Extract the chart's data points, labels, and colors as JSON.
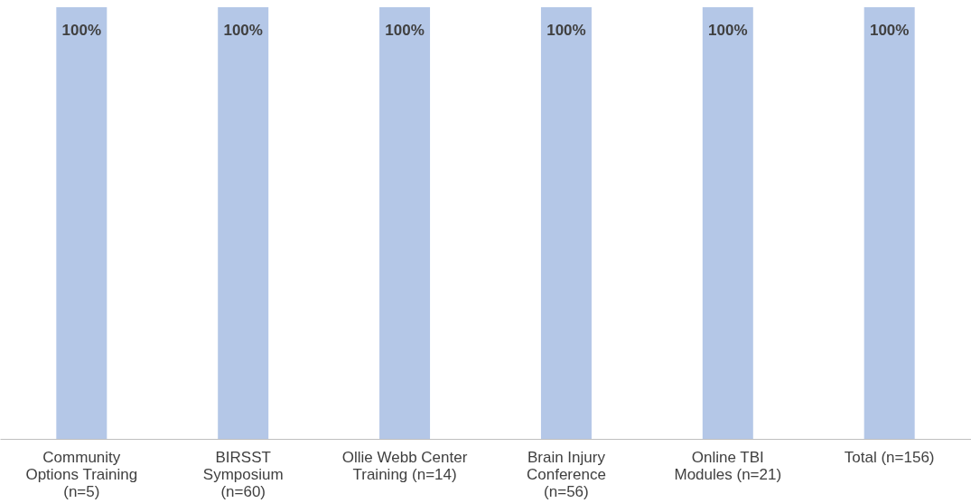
{
  "chart_data": {
    "type": "bar",
    "categories": [
      "Community\nOptions Training\n(n=5)",
      "BIRSST\nSymposium\n(n=60)",
      "Ollie Webb Center\nTraining (n=14)",
      "Brain Injury\nConference\n(n=56)",
      "Online TBI\nModules (n=21)",
      "Total (n=156)"
    ],
    "values": [
      100,
      100,
      100,
      100,
      100,
      100
    ],
    "value_labels": [
      "100%",
      "100%",
      "100%",
      "100%",
      "100%",
      "100%"
    ],
    "color": "#b4c7e7"
  }
}
